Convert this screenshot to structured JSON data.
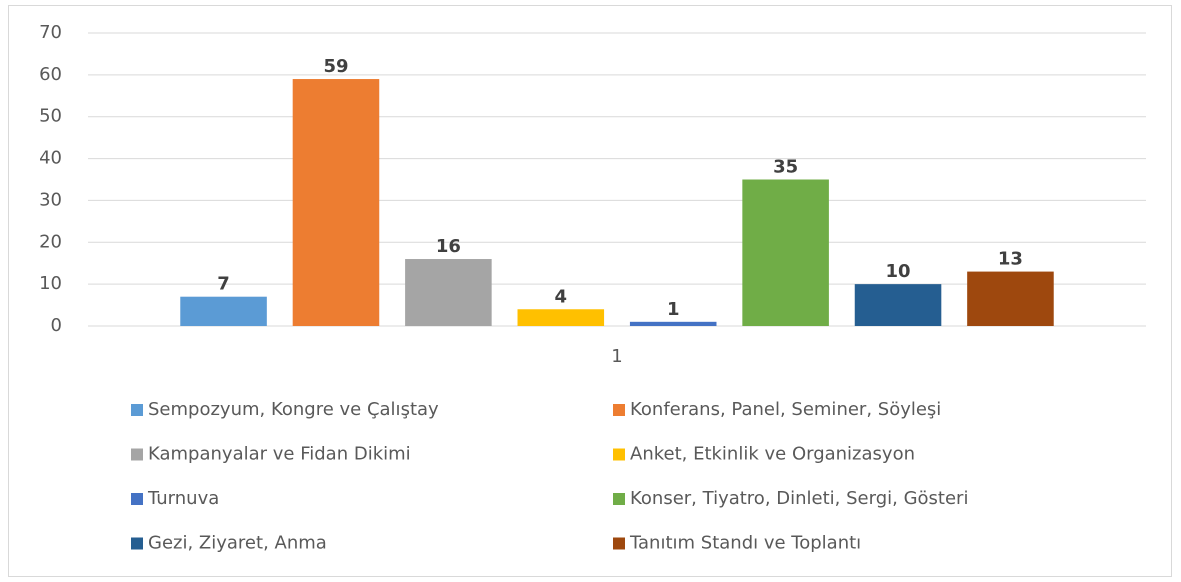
{
  "chart_data": {
    "type": "bar",
    "categories": [
      "1"
    ],
    "series": [
      {
        "name": "Sempozyum, Kongre ve Çalıştay",
        "color": "#5b9bd5",
        "values": [
          7
        ]
      },
      {
        "name": "Konferans, Panel, Seminer, Söyleşi",
        "color": "#ed7d31",
        "values": [
          59
        ]
      },
      {
        "name": "Kampanyalar ve Fidan Dikimi",
        "color": "#a5a5a5",
        "values": [
          16
        ]
      },
      {
        "name": "Anket, Etkinlik ve Organizasyon",
        "color": "#ffc000",
        "values": [
          4
        ]
      },
      {
        "name": "Turnuva",
        "color": "#4472c4",
        "values": [
          1
        ]
      },
      {
        "name": "Konser, Tiyatro, Dinleti, Sergi, Gösteri",
        "color": "#70ad47",
        "values": [
          35
        ]
      },
      {
        "name": "Gezi, Ziyaret, Anma",
        "color": "#255e91",
        "values": [
          10
        ]
      },
      {
        "name": "Tanıtım Standı ve Toplantı",
        "color": "#9e480e",
        "values": [
          13
        ]
      }
    ],
    "ylim": [
      0,
      70
    ],
    "yticks": [
      0,
      10,
      20,
      30,
      40,
      50,
      60,
      70
    ],
    "grid": true,
    "legend": "bottom"
  }
}
